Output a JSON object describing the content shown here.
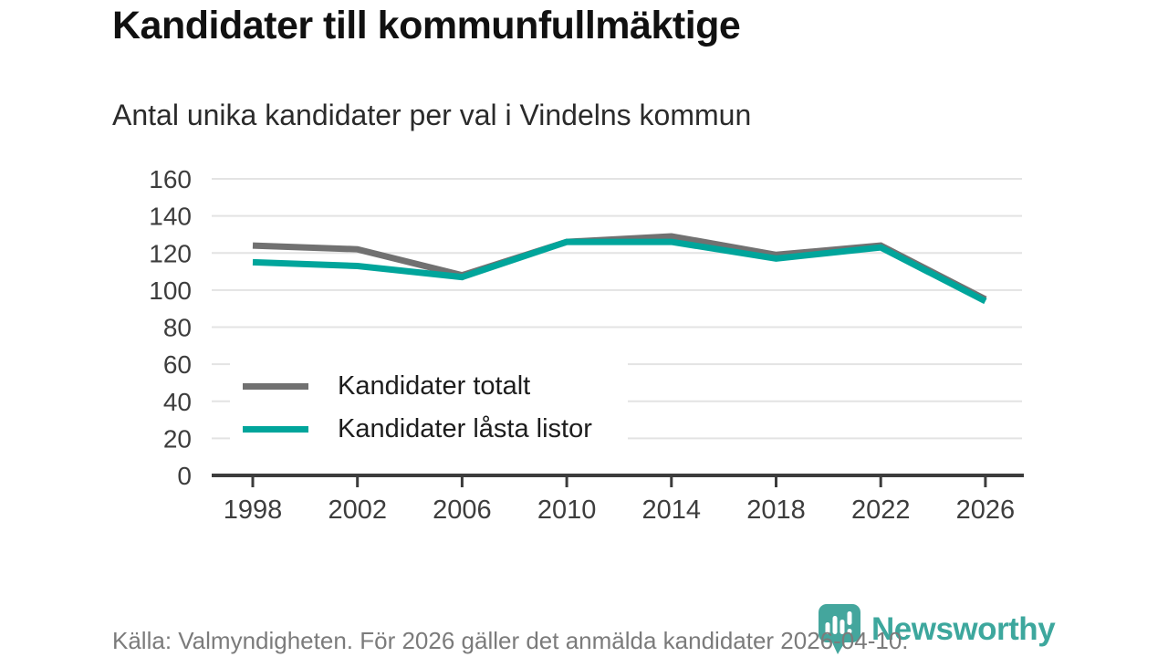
{
  "header": {
    "title": "Kandidater till kommunfullmäktige",
    "subtitle": "Antal unika kandidater per val i Vindelns kommun"
  },
  "footer": {
    "source": "Källa: Valmyndigheten. För 2026 gäller det anmälda kandidater 2026-04-10.",
    "logo_text": "Newsworthy"
  },
  "colors": {
    "series_total": "#717171",
    "series_locked": "#00a59b",
    "grid": "#e3e3e3",
    "axis": "#3c3c3c",
    "logo_teal": "#44a69d",
    "tick_label": "#3d3d3d",
    "footer_text": "#7b7b7b"
  },
  "chart_data": {
    "type": "line",
    "title": "Kandidater till kommunfullmäktige",
    "subtitle": "Antal unika kandidater per val i Vindelns kommun",
    "x": [
      1998,
      2002,
      2006,
      2010,
      2014,
      2018,
      2022,
      2026
    ],
    "series": [
      {
        "id": "kandidater-totalt",
        "name": "Kandidater totalt",
        "color": "#717171",
        "values": [
          124,
          122,
          108,
          126,
          129,
          119,
          124,
          95
        ]
      },
      {
        "id": "kandidater-lasta-listor",
        "name": "Kandidater låsta listor",
        "color": "#00a59b",
        "values": [
          115,
          113,
          107,
          126,
          126,
          117,
          123,
          94
        ]
      }
    ],
    "ylim": [
      0,
      160
    ],
    "yticks": [
      0,
      20,
      40,
      60,
      80,
      100,
      120,
      140,
      160
    ],
    "grid": "horizontal",
    "legend_position": "inside-left-middle",
    "xlabel": "",
    "ylabel": ""
  }
}
